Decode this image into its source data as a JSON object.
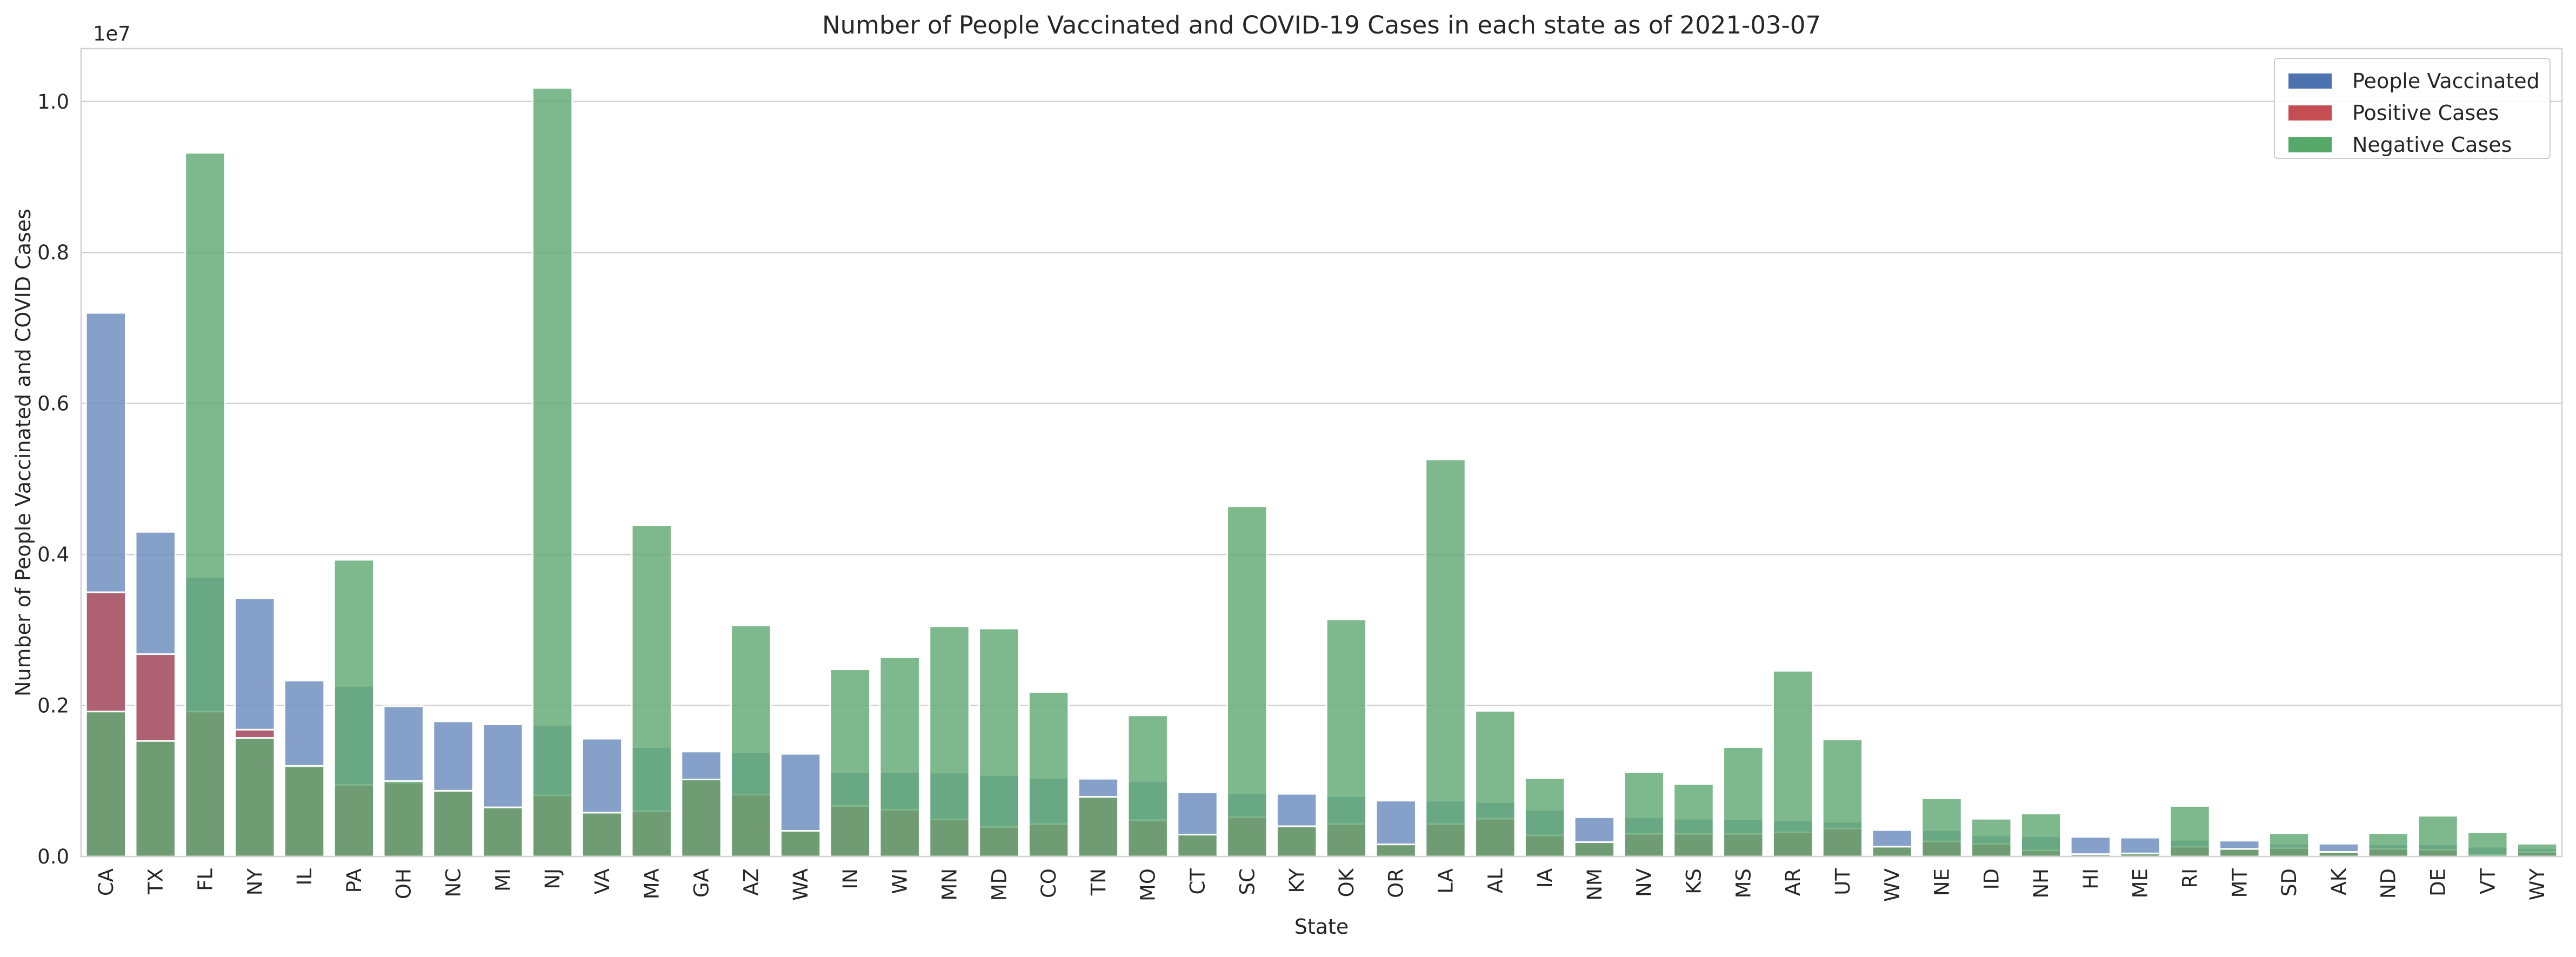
{
  "chart_data": {
    "type": "bar",
    "title": "Number of People Vaccinated and COVID-19 Cases in each state as of 2021-03-07",
    "xlabel": "State",
    "ylabel": "Number of People Vaccinated and COVID Cases",
    "y_offset_label": "1e7",
    "ylim": [
      0,
      10700000
    ],
    "y_ticks": [
      0,
      2000000,
      4000000,
      6000000,
      8000000,
      10000000
    ],
    "y_tick_labels": [
      "0.0",
      "0.2",
      "0.4",
      "0.6",
      "0.8",
      "1.0"
    ],
    "grid": "horizontal",
    "legend_position": "top-right",
    "categories": [
      "CA",
      "TX",
      "FL",
      "NY",
      "IL",
      "PA",
      "OH",
      "NC",
      "MI",
      "NJ",
      "VA",
      "MA",
      "GA",
      "AZ",
      "WA",
      "IN",
      "WI",
      "MN",
      "MD",
      "CO",
      "TN",
      "MO",
      "CT",
      "SC",
      "KY",
      "OK",
      "OR",
      "LA",
      "AL",
      "IA",
      "NM",
      "NV",
      "KS",
      "MS",
      "AR",
      "UT",
      "WV",
      "NE",
      "ID",
      "NH",
      "HI",
      "ME",
      "RI",
      "MT",
      "SD",
      "AK",
      "ND",
      "DE",
      "VT",
      "WY"
    ],
    "series": [
      {
        "name": "People Vaccinated",
        "color": "#6a8cbd",
        "legend_color": "#4c72b0",
        "values": [
          7200000,
          4300000,
          3700000,
          3420000,
          2330000,
          2260000,
          1990000,
          1790000,
          1750000,
          1740000,
          1560000,
          1450000,
          1390000,
          1380000,
          1360000,
          1120000,
          1120000,
          1110000,
          1080000,
          1040000,
          1030000,
          1000000,
          850000,
          840000,
          830000,
          800000,
          740000,
          740000,
          720000,
          620000,
          520000,
          520000,
          500000,
          490000,
          480000,
          460000,
          350000,
          350000,
          280000,
          270000,
          260000,
          250000,
          220000,
          210000,
          170000,
          170000,
          160000,
          160000,
          130000,
          110000
        ]
      },
      {
        "name": "Positive Cases",
        "color": "#b7535f",
        "legend_color": "#c44e52",
        "values": [
          3500000,
          2680000,
          1920000,
          1680000,
          1190000,
          950000,
          980000,
          870000,
          650000,
          810000,
          580000,
          600000,
          1020000,
          820000,
          340000,
          670000,
          620000,
          490000,
          390000,
          430000,
          790000,
          480000,
          290000,
          520000,
          400000,
          430000,
          160000,
          430000,
          500000,
          280000,
          190000,
          300000,
          300000,
          300000,
          320000,
          370000,
          130000,
          200000,
          170000,
          80000,
          30000,
          40000,
          130000,
          100000,
          110000,
          60000,
          100000,
          90000,
          20000,
          60000
        ]
      },
      {
        "name": "Negative Cases",
        "color": "#62aa74",
        "legend_color": "#55a868",
        "values": [
          1920000,
          1530000,
          9320000,
          1570000,
          1200000,
          3930000,
          1000000,
          870000,
          650000,
          10180000,
          580000,
          4390000,
          1020000,
          3060000,
          340000,
          2480000,
          2640000,
          3050000,
          3020000,
          2180000,
          790000,
          1870000,
          290000,
          4640000,
          400000,
          3140000,
          160000,
          5260000,
          1930000,
          1040000,
          190000,
          1120000,
          960000,
          1450000,
          2460000,
          1550000,
          130000,
          770000,
          500000,
          570000,
          30000,
          40000,
          670000,
          100000,
          310000,
          60000,
          310000,
          540000,
          320000,
          170000
        ]
      }
    ]
  }
}
